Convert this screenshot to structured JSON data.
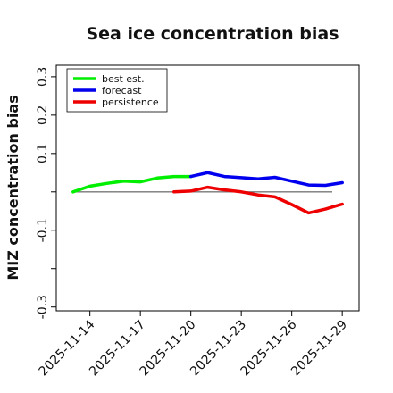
{
  "chart_data": {
    "type": "line",
    "title": "Sea ice concentration bias",
    "xlabel": "",
    "ylabel": "MIZ concentration bias",
    "ylim": [
      -0.31,
      0.33
    ],
    "y_ticks": [
      -0.3,
      -0.2,
      -0.1,
      0.0,
      0.1,
      0.2,
      0.3
    ],
    "y_tick_labels": [
      "-0.3",
      "",
      "-0.1",
      "",
      "0.1",
      "0.2",
      "0.3"
    ],
    "xlim": [
      "2025-11-12",
      "2025-11-30"
    ],
    "x_ticks": [
      "2025-11-14",
      "2025-11-17",
      "2025-11-20",
      "2025-11-23",
      "2025-11-26",
      "2025-11-29"
    ],
    "x_tick_highlight": "2025-11-20",
    "x_tick_highlight_color": "#1a7a1a",
    "reference_line": 0.0,
    "grid": false,
    "legend_position": "top-left",
    "series": [
      {
        "name": "best est.",
        "color": "#00ee00",
        "x": [
          "2025-11-13",
          "2025-11-14",
          "2025-11-15",
          "2025-11-16",
          "2025-11-17",
          "2025-11-18",
          "2025-11-19",
          "2025-11-20"
        ],
        "y": [
          0.0,
          0.015,
          0.022,
          0.028,
          0.026,
          0.036,
          0.04,
          0.04
        ]
      },
      {
        "name": "forecast",
        "color": "#0000ee",
        "x": [
          "2025-11-20",
          "2025-11-21",
          "2025-11-22",
          "2025-11-23",
          "2025-11-24",
          "2025-11-25",
          "2025-11-26",
          "2025-11-27",
          "2025-11-28",
          "2025-11-29"
        ],
        "y": [
          0.04,
          0.05,
          0.04,
          0.037,
          0.034,
          0.038,
          0.028,
          0.018,
          0.017,
          0.024
        ]
      },
      {
        "name": "persistence",
        "color": "#ee0000",
        "x": [
          "2025-11-19",
          "2025-11-20",
          "2025-11-21",
          "2025-11-22",
          "2025-11-23",
          "2025-11-24",
          "2025-11-25",
          "2025-11-26",
          "2025-11-27",
          "2025-11-28",
          "2025-11-29"
        ],
        "y": [
          0.0,
          0.002,
          0.012,
          0.005,
          0.0,
          -0.008,
          -0.013,
          -0.033,
          -0.055,
          -0.045,
          -0.032
        ]
      }
    ]
  }
}
